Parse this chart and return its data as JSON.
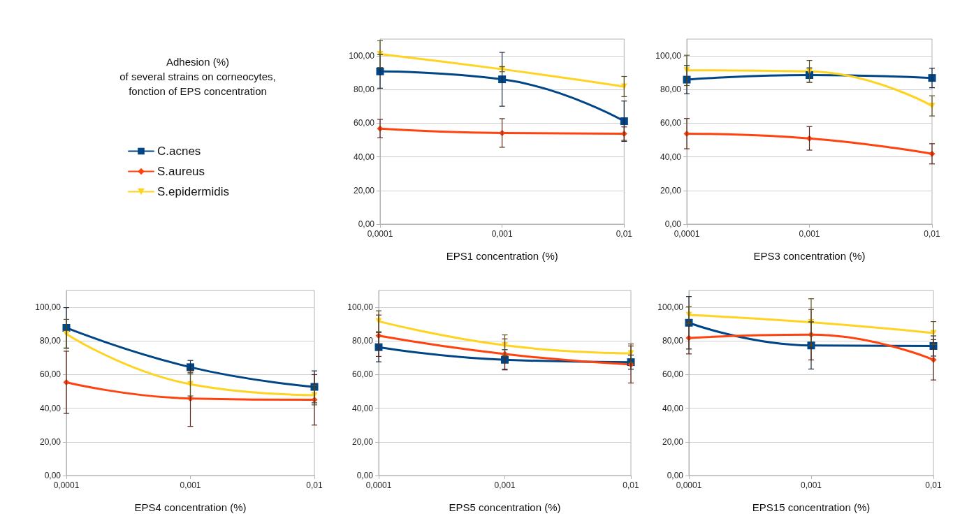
{
  "chart_data": [
    {
      "type": "other",
      "title": "Adhesion (%)",
      "subtitle": "of several strains on corneocytes, fonction of EPS concentration"
    },
    {
      "type": "line",
      "xlabel": "EPS1 concentration (%)",
      "categories": [
        "0,0001",
        "0,001",
        "0,01"
      ],
      "ylim": [
        0,
        110
      ],
      "yticks": [
        {
          "value": 0,
          "label": "0,00"
        },
        {
          "value": 20,
          "label": "20,00"
        },
        {
          "value": 40,
          "label": "40,00"
        },
        {
          "value": 60,
          "label": "60,00"
        },
        {
          "value": 80,
          "label": "80,00"
        },
        {
          "value": 100,
          "label": "100,00"
        }
      ],
      "grid": "y",
      "legend": "left",
      "line_style": "solid",
      "series": [
        {
          "name": "C.acnes",
          "color": "#004586",
          "marker": "square",
          "values": [
            90.8,
            86.1,
            61.2
          ],
          "errors": [
            10,
            16,
            12
          ]
        },
        {
          "name": "S.aureus",
          "color": "#ff420e",
          "marker": "diamond",
          "values": [
            56.8,
            54.2,
            53.8
          ],
          "errors": [
            5.5,
            8.5,
            4
          ]
        },
        {
          "name": "S.epidermidis",
          "color": "#ffd320",
          "marker": "triangle",
          "values": [
            101.1,
            92.1,
            81.8
          ],
          "errors": [
            8,
            1.5,
            6
          ]
        }
      ]
    },
    {
      "type": "line",
      "xlabel": "EPS3 concentration (%)",
      "categories": [
        "0,0001",
        "0,001",
        "0,01"
      ],
      "ylim": [
        0,
        110
      ],
      "yticks": [
        {
          "value": 0,
          "label": "0,00"
        },
        {
          "value": 20,
          "label": "20,00"
        },
        {
          "value": 40,
          "label": "40,00"
        },
        {
          "value": 60,
          "label": "60,00"
        },
        {
          "value": 80,
          "label": "80,00"
        },
        {
          "value": 100,
          "label": "100,00"
        }
      ],
      "grid": "y",
      "line_style": "solid",
      "series": [
        {
          "color": "#004586",
          "marker": "square",
          "values": [
            85.9,
            88.6,
            86.9
          ],
          "errors": [
            8.4,
            4.3,
            5.8
          ]
        },
        {
          "color": "#ff420e",
          "marker": "diamond",
          "values": [
            53.8,
            51.0,
            41.8
          ],
          "errors": [
            9,
            7,
            6
          ]
        },
        {
          "color": "#ffd320",
          "marker": "triangle",
          "values": [
            91.4,
            90.8,
            70.3
          ],
          "errors": [
            9,
            6.5,
            6
          ]
        }
      ]
    },
    {
      "type": "line",
      "xlabel": "EPS4 concentration (%)",
      "categories": [
        "0,0001",
        "0,001",
        "0,01"
      ],
      "ylim": [
        0,
        110
      ],
      "yticks": [
        {
          "value": 0,
          "label": "0,00"
        },
        {
          "value": 20,
          "label": "20,00"
        },
        {
          "value": 40,
          "label": "40,00"
        },
        {
          "value": 60,
          "label": "60,00"
        },
        {
          "value": 80,
          "label": "80,00"
        },
        {
          "value": 100,
          "label": "100,00"
        }
      ],
      "grid": "y",
      "line_style": "solid",
      "series": [
        {
          "color": "#004586",
          "marker": "square",
          "values": [
            87.8,
            64.4,
            52.7
          ],
          "errors": [
            12,
            4,
            9.5
          ]
        },
        {
          "color": "#ff420e",
          "marker": "diamond",
          "values": [
            55.4,
            45.8,
            45.0
          ],
          "errors": [
            18.5,
            16.6,
            15
          ]
        },
        {
          "color": "#ffd320",
          "marker": "triangle",
          "values": [
            84.2,
            54.3,
            47.7
          ],
          "errors": [
            8.6,
            7,
            5.7
          ]
        }
      ]
    },
    {
      "type": "line",
      "xlabel": "EPS5 concentration (%)",
      "categories": [
        "0,0001",
        "0,001",
        "0,01"
      ],
      "ylim": [
        0,
        110
      ],
      "yticks": [
        {
          "value": 0,
          "label": "0,00"
        },
        {
          "value": 20,
          "label": "20,00"
        },
        {
          "value": 40,
          "label": "40,00"
        },
        {
          "value": 60,
          "label": "60,00"
        },
        {
          "value": 80,
          "label": "80,00"
        },
        {
          "value": 100,
          "label": "100,00"
        }
      ],
      "grid": "y",
      "line_style": "solid",
      "series": [
        {
          "color": "#004586",
          "marker": "square",
          "values": [
            76.3,
            68.8,
            67.4
          ],
          "errors": [
            8.7,
            6,
            4.2
          ]
        },
        {
          "color": "#ff420e",
          "marker": "diamond",
          "values": [
            83.1,
            72.2,
            66.0
          ],
          "errors": [
            12.3,
            9,
            11
          ]
        },
        {
          "color": "#ffd320",
          "marker": "triangle",
          "values": [
            91.7,
            77.4,
            72.6
          ],
          "errors": [
            6.2,
            6.2,
            5.6
          ]
        }
      ]
    },
    {
      "type": "line",
      "xlabel": "EPS15 concentration (%)",
      "categories": [
        "0,0001",
        "0,001",
        "0,01"
      ],
      "ylim": [
        0,
        110
      ],
      "yticks": [
        {
          "value": 0,
          "label": "0,00"
        },
        {
          "value": 20,
          "label": "20,00"
        },
        {
          "value": 40,
          "label": "40,00"
        },
        {
          "value": 60,
          "label": "60,00"
        },
        {
          "value": 80,
          "label": "80,00"
        },
        {
          "value": 100,
          "label": "100,00"
        }
      ],
      "grid": "y",
      "line_style": "solid",
      "series": [
        {
          "color": "#004586",
          "marker": "square",
          "values": [
            90.8,
            77.3,
            77.0
          ],
          "errors": [
            15.6,
            14,
            6
          ]
        },
        {
          "color": "#ff420e",
          "marker": "diamond",
          "values": [
            81.8,
            83.7,
            68.8
          ],
          "errors": [
            9.5,
            15,
            12
          ]
        },
        {
          "color": "#ffd320",
          "marker": "triangle",
          "values": [
            95.5,
            91.1,
            84.7
          ],
          "errors": [
            5,
            14,
            6.8
          ]
        }
      ]
    }
  ]
}
